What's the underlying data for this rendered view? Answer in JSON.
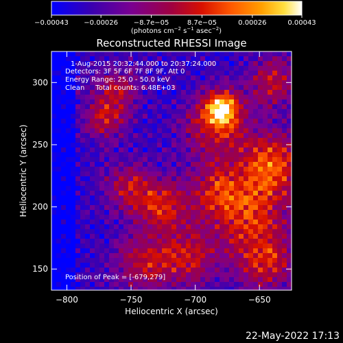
{
  "chart_data": {
    "type": "heatmap",
    "title": "Reconstructed RHESSI Image",
    "xlabel": "Heliocentric X (arcsec)",
    "ylabel": "Heliocentric Y (arcsec)",
    "xlim": [
      -812,
      -625
    ],
    "ylim": [
      133,
      325
    ],
    "x_ticks": [
      -800,
      -750,
      -700,
      -650
    ],
    "y_ticks": [
      150,
      200,
      250,
      300
    ],
    "x_tick_labels": [
      "−800",
      "−750",
      "−700",
      "−650"
    ],
    "y_tick_labels": [
      "150",
      "200",
      "250",
      "300"
    ],
    "colorbar": {
      "range": [
        -0.00043,
        0.00043
      ],
      "ticks": [
        -0.00043,
        -0.00026,
        -8.7e-05,
        8.7e-05,
        0.00026,
        0.00043
      ],
      "tick_labels": [
        "−0.00043",
        "−0.00026",
        "−8.7e−05",
        "8.7e−05",
        "0.00026",
        "0.00043"
      ],
      "unit_parts": [
        "(photons cm",
        "−2",
        " s",
        "−1",
        " asec",
        "−2",
        ")"
      ],
      "colormap": [
        "#0000ff",
        "#400080",
        "#800080",
        "#c00000",
        "#ff4000",
        "#ff9000",
        "#ffd000",
        "#ffffff"
      ]
    },
    "annotations": [
      "1-Aug-2015 20:32:44.000 to 20:37:24.000",
      "Detectors: 3F 5F 6F 7F 8F 9F, Att 0",
      "Energy Range: 25.0 - 50.0 keV",
      "Clean     Total counts: 6.48E+03"
    ],
    "peak_label": "Position of Peak = [-679,279]",
    "peak": [
      -679,
      279
    ],
    "sources": [
      {
        "x": -679,
        "y": 279,
        "amp": 1.0,
        "sigma": 10
      },
      {
        "x": -686,
        "y": 262,
        "amp": 0.55,
        "sigma": 18
      },
      {
        "x": -640,
        "y": 235,
        "amp": 0.75,
        "sigma": 18
      },
      {
        "x": -660,
        "y": 195,
        "amp": 0.7,
        "sigma": 22
      },
      {
        "x": -685,
        "y": 215,
        "amp": 0.45,
        "sigma": 14
      },
      {
        "x": -725,
        "y": 200,
        "amp": 0.6,
        "sigma": 14
      },
      {
        "x": -750,
        "y": 215,
        "amp": 0.55,
        "sigma": 14
      },
      {
        "x": -770,
        "y": 270,
        "amp": 0.55,
        "sigma": 12
      },
      {
        "x": -760,
        "y": 295,
        "amp": 0.5,
        "sigma": 12
      },
      {
        "x": -705,
        "y": 160,
        "amp": 0.55,
        "sigma": 16
      },
      {
        "x": -740,
        "y": 155,
        "amp": 0.55,
        "sigma": 16
      },
      {
        "x": -645,
        "y": 155,
        "amp": 0.6,
        "sigma": 16
      },
      {
        "x": -640,
        "y": 300,
        "amp": 0.55,
        "sigma": 14
      }
    ],
    "background_level": -0.25,
    "grid": false
  },
  "footer": {
    "timestamp": "22-May-2022 17:13"
  }
}
